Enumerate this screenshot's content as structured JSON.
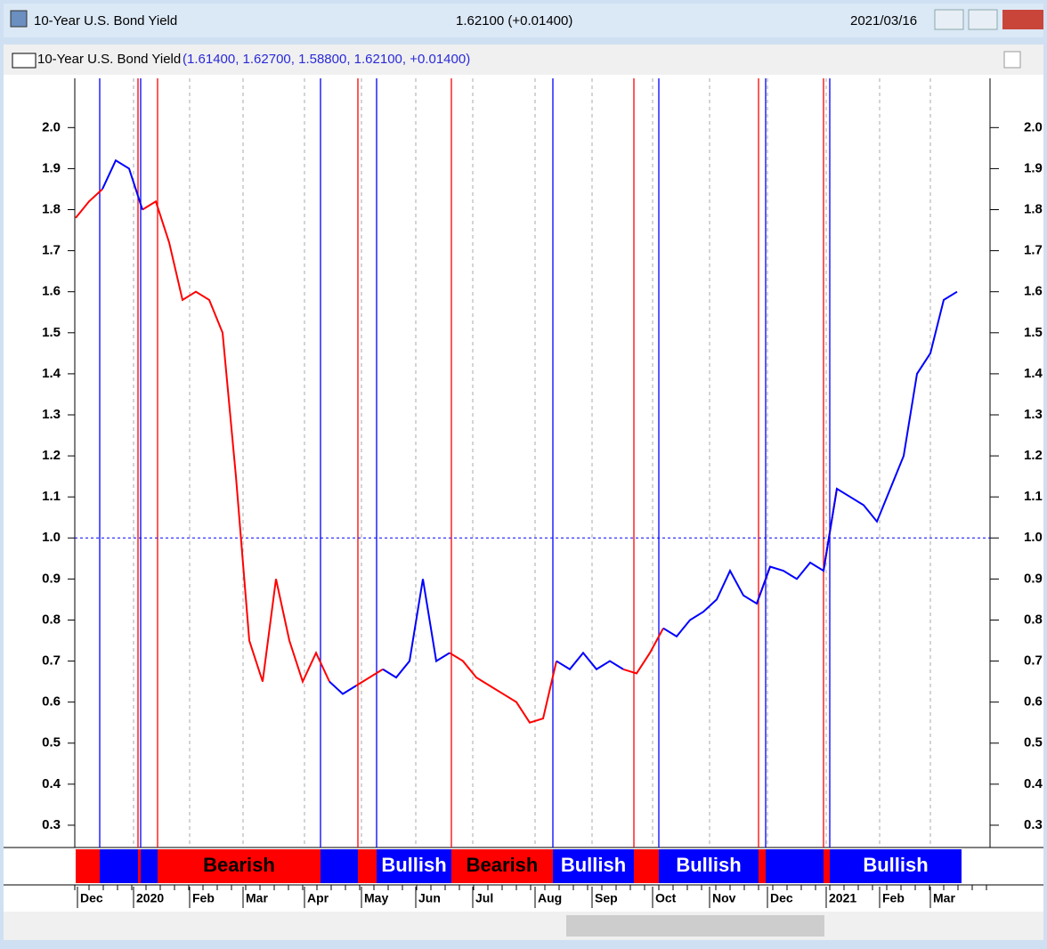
{
  "window": {
    "title": "10-Year U.S. Bond Yield",
    "quote": "1.62100 (+0.01400)",
    "date": "2021/03/16"
  },
  "chart_data": {
    "type": "line",
    "title": "10-Year U.S. Bond Yield",
    "subtitle": "(1.61400, 1.62700, 1.58800, 1.62100, +0.01400)",
    "series": [
      {
        "name": "Bearish",
        "color": "#ff0000",
        "values": [
          1.78,
          1.82,
          1.85,
          null,
          null,
          1.8,
          1.82,
          1.72,
          1.58,
          1.6,
          1.58,
          1.5,
          1.15,
          0.75,
          0.65,
          0.9,
          0.75,
          0.65,
          0.72,
          0.65,
          null,
          0.64,
          0.66,
          0.68,
          null,
          null,
          null,
          null,
          0.72,
          0.7,
          0.66,
          0.64,
          0.62,
          0.6,
          0.55,
          0.56,
          0.7,
          null,
          null,
          null,
          null,
          0.68,
          0.67,
          0.72,
          0.78,
          null,
          null,
          null,
          null,
          null,
          null,
          0.84,
          0.93,
          null,
          null,
          null,
          0.92,
          1.12,
          null,
          null,
          null,
          null,
          null,
          null,
          null,
          null,
          null
        ]
      },
      {
        "name": "Bullish",
        "color": "#0000ff",
        "values": [
          null,
          null,
          1.85,
          1.92,
          1.9,
          1.8,
          null,
          null,
          null,
          null,
          null,
          null,
          null,
          null,
          null,
          null,
          null,
          null,
          null,
          0.65,
          0.62,
          0.64,
          null,
          0.68,
          0.66,
          0.7,
          0.9,
          0.7,
          0.72,
          null,
          null,
          null,
          null,
          null,
          null,
          null,
          0.7,
          0.68,
          0.72,
          0.68,
          0.7,
          0.68,
          null,
          null,
          0.78,
          0.76,
          0.8,
          0.82,
          0.85,
          0.92,
          0.86,
          0.84,
          0.93,
          0.92,
          0.9,
          0.94,
          0.92,
          1.12,
          1.1,
          1.08,
          1.04,
          1.12,
          1.2,
          1.4,
          1.45,
          1.58,
          1.6
        ]
      }
    ],
    "ylim": [
      0.25,
      2.12
    ],
    "yticks": [
      0.3,
      0.4,
      0.5,
      0.6,
      0.7,
      0.8,
      0.9,
      {
        "value": 1,
        "label": "1.0"
      },
      1.1,
      1.2,
      1.3,
      1.4,
      1.5,
      1.6,
      1.7,
      1.8,
      1.9,
      {
        "value": 2,
        "label": "2.0"
      }
    ],
    "reference_line": 1,
    "month_labels": [
      "Dec",
      "2020",
      "Feb",
      "Mar",
      "Apr",
      "May",
      "Jun",
      "Jul",
      "Aug",
      "Sep",
      "Oct",
      "Nov",
      "Dec",
      "2021",
      "Feb",
      "Mar"
    ],
    "signal_labels": [
      "Bearish",
      "Bullish",
      "Bearish",
      "Bullish",
      "Bullish",
      "Bullish"
    ]
  }
}
